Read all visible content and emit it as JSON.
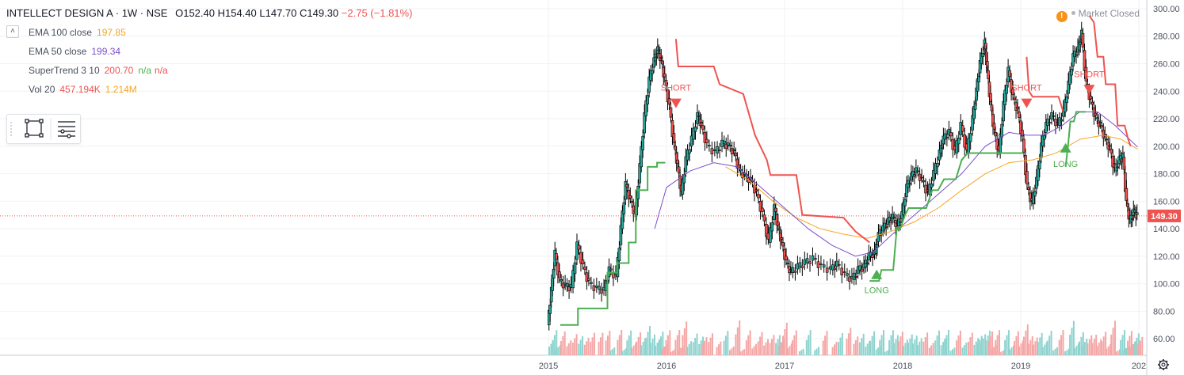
{
  "header": {
    "symbol": "INTELLECT DESIGN A · 1W · NSE",
    "open": "O152.40",
    "high": "H154.40",
    "low": "L147.70",
    "close": "C149.30",
    "change": "−2.75 (−1.81%)",
    "change_color": "#ef5350"
  },
  "legend": [
    {
      "name": "EMA 100 close",
      "values": [
        "197.85"
      ],
      "colors": [
        "#f5a623"
      ]
    },
    {
      "name": "EMA 50 close",
      "values": [
        "199.34"
      ],
      "colors": [
        "#7b4fc9"
      ]
    },
    {
      "name": "SuperTrend 3 10",
      "values": [
        "200.70",
        "n/a",
        "n/a"
      ],
      "colors": [
        "#ef5350",
        "#4caf50",
        "#ef5350"
      ]
    },
    {
      "name": "Vol 20",
      "values": [
        "457.194K",
        "1.214M"
      ],
      "colors": [
        "#ef5350",
        "#f5a623"
      ]
    }
  ],
  "status": {
    "icon": "warning-icon",
    "text": "Market Closed"
  },
  "toolbox": {
    "icons": [
      "rectangle-select-icon",
      "object-tree-icon"
    ]
  },
  "settings_icon": "gear-icon",
  "colors": {
    "up": "#26a69a",
    "down": "#ef5350",
    "candle_border": "#000000",
    "supertrend_up": "#4caf50",
    "supertrend_down": "#ef5350",
    "ema50": "#7b4fc9",
    "ema100": "#f5a623"
  },
  "chart_data": {
    "type": "candlestick",
    "x_ticks": [
      "2015",
      "2016",
      "2017",
      "2018",
      "2019",
      "202"
    ],
    "y_ticks": [
      60,
      80,
      100,
      120,
      140,
      160,
      180,
      200,
      220,
      240,
      260,
      280,
      300
    ],
    "ylim": [
      48,
      304
    ],
    "xlim": [
      2014.99,
      2020.0
    ],
    "last_price": "149.30",
    "close_series": [
      [
        2015.0,
        70
      ],
      [
        2015.03,
        95
      ],
      [
        2015.06,
        122
      ],
      [
        2015.1,
        102
      ],
      [
        2015.15,
        98
      ],
      [
        2015.2,
        97
      ],
      [
        2015.25,
        128
      ],
      [
        2015.3,
        112
      ],
      [
        2015.35,
        100
      ],
      [
        2015.42,
        96
      ],
      [
        2015.48,
        95
      ],
      [
        2015.52,
        110
      ],
      [
        2015.58,
        105
      ],
      [
        2015.62,
        140
      ],
      [
        2015.66,
        172
      ],
      [
        2015.7,
        160
      ],
      [
        2015.74,
        150
      ],
      [
        2015.78,
        185
      ],
      [
        2015.82,
        222
      ],
      [
        2015.86,
        248
      ],
      [
        2015.9,
        262
      ],
      [
        2015.93,
        270
      ],
      [
        2015.96,
        262
      ],
      [
        2015.99,
        248
      ],
      [
        2016.03,
        228
      ],
      [
        2016.07,
        200
      ],
      [
        2016.1,
        185
      ],
      [
        2016.13,
        165
      ],
      [
        2016.17,
        190
      ],
      [
        2016.22,
        205
      ],
      [
        2016.27,
        222
      ],
      [
        2016.3,
        215
      ],
      [
        2016.35,
        200
      ],
      [
        2016.42,
        195
      ],
      [
        2016.48,
        202
      ],
      [
        2016.53,
        200
      ],
      [
        2016.58,
        195
      ],
      [
        2016.62,
        182
      ],
      [
        2016.67,
        178
      ],
      [
        2016.72,
        175
      ],
      [
        2016.77,
        165
      ],
      [
        2016.82,
        150
      ],
      [
        2016.87,
        130
      ],
      [
        2016.92,
        155
      ],
      [
        2016.95,
        140
      ],
      [
        2016.98,
        130
      ],
      [
        2017.02,
        115
      ],
      [
        2017.06,
        108
      ],
      [
        2017.12,
        112
      ],
      [
        2017.18,
        115
      ],
      [
        2017.25,
        118
      ],
      [
        2017.32,
        112
      ],
      [
        2017.4,
        110
      ],
      [
        2017.45,
        114
      ],
      [
        2017.52,
        106
      ],
      [
        2017.58,
        103
      ],
      [
        2017.63,
        110
      ],
      [
        2017.68,
        112
      ],
      [
        2017.72,
        120
      ],
      [
        2017.77,
        122
      ],
      [
        2017.8,
        135
      ],
      [
        2017.84,
        140
      ],
      [
        2017.88,
        145
      ],
      [
        2017.92,
        148
      ],
      [
        2017.96,
        142
      ],
      [
        2018.0,
        150
      ],
      [
        2018.04,
        170
      ],
      [
        2018.08,
        178
      ],
      [
        2018.12,
        182
      ],
      [
        2018.17,
        175
      ],
      [
        2018.22,
        165
      ],
      [
        2018.27,
        180
      ],
      [
        2018.32,
        195
      ],
      [
        2018.35,
        205
      ],
      [
        2018.4,
        210
      ],
      [
        2018.45,
        195
      ],
      [
        2018.5,
        215
      ],
      [
        2018.55,
        195
      ],
      [
        2018.6,
        220
      ],
      [
        2018.63,
        240
      ],
      [
        2018.66,
        260
      ],
      [
        2018.7,
        275
      ],
      [
        2018.72,
        255
      ],
      [
        2018.75,
        230
      ],
      [
        2018.78,
        210
      ],
      [
        2018.82,
        195
      ],
      [
        2018.86,
        230
      ],
      [
        2018.9,
        255
      ],
      [
        2018.94,
        235
      ],
      [
        2018.98,
        225
      ],
      [
        2019.02,
        205
      ],
      [
        2019.06,
        170
      ],
      [
        2019.1,
        158
      ],
      [
        2019.14,
        175
      ],
      [
        2019.18,
        200
      ],
      [
        2019.22,
        215
      ],
      [
        2019.27,
        222
      ],
      [
        2019.32,
        215
      ],
      [
        2019.37,
        225
      ],
      [
        2019.41,
        245
      ],
      [
        2019.45,
        265
      ],
      [
        2019.49,
        270
      ],
      [
        2019.52,
        282
      ],
      [
        2019.56,
        245
      ],
      [
        2019.6,
        232
      ],
      [
        2019.64,
        220
      ],
      [
        2019.68,
        215
      ],
      [
        2019.72,
        205
      ],
      [
        2019.76,
        198
      ],
      [
        2019.8,
        182
      ],
      [
        2019.84,
        190
      ],
      [
        2019.87,
        192
      ],
      [
        2019.9,
        158
      ],
      [
        2019.93,
        145
      ],
      [
        2019.96,
        152
      ],
      [
        2019.99,
        149.3
      ]
    ],
    "supertrend": [
      {
        "trend": "up",
        "points": [
          [
            2015.1,
            70
          ],
          [
            2015.25,
            70
          ],
          [
            2015.25,
            82
          ],
          [
            2015.5,
            82
          ],
          [
            2015.5,
            108
          ],
          [
            2015.58,
            108
          ],
          [
            2015.58,
            115
          ],
          [
            2015.68,
            115
          ],
          [
            2015.68,
            130
          ],
          [
            2015.74,
            130
          ],
          [
            2015.74,
            168
          ],
          [
            2015.84,
            168
          ],
          [
            2015.84,
            185
          ],
          [
            2015.92,
            185
          ],
          [
            2015.92,
            188
          ],
          [
            2015.99,
            188
          ]
        ]
      },
      {
        "trend": "down",
        "points": [
          [
            2016.08,
            278
          ],
          [
            2016.1,
            258
          ],
          [
            2016.4,
            258
          ],
          [
            2016.45,
            245
          ],
          [
            2016.65,
            238
          ],
          [
            2016.75,
            208
          ],
          [
            2016.85,
            190
          ],
          [
            2016.88,
            179
          ],
          [
            2017.1,
            179
          ],
          [
            2017.15,
            150
          ],
          [
            2017.5,
            148
          ],
          [
            2017.6,
            138
          ],
          [
            2017.72,
            130
          ]
        ]
      },
      {
        "trend": "up",
        "points": [
          [
            2017.72,
            102
          ],
          [
            2017.8,
            102
          ],
          [
            2017.82,
            110
          ],
          [
            2017.92,
            110
          ],
          [
            2017.95,
            140
          ],
          [
            2017.98,
            140
          ],
          [
            2018.02,
            150
          ],
          [
            2018.05,
            155
          ],
          [
            2018.2,
            155
          ],
          [
            2018.25,
            168
          ],
          [
            2018.3,
            168
          ],
          [
            2018.35,
            176
          ],
          [
            2018.45,
            176
          ],
          [
            2018.5,
            190
          ],
          [
            2018.55,
            195
          ],
          [
            2018.95,
            195
          ],
          [
            2019.02,
            195
          ]
        ]
      },
      {
        "trend": "down",
        "points": [
          [
            2019.05,
            265
          ],
          [
            2019.07,
            240
          ],
          [
            2019.1,
            236
          ],
          [
            2019.32,
            236
          ],
          [
            2019.36,
            225
          ]
        ]
      },
      {
        "trend": "up",
        "points": [
          [
            2019.38,
            185
          ],
          [
            2019.4,
            200
          ],
          [
            2019.42,
            218
          ],
          [
            2019.45,
            218
          ],
          [
            2019.47,
            225
          ],
          [
            2019.55,
            225
          ]
        ]
      },
      {
        "trend": "down",
        "points": [
          [
            2019.58,
            295
          ],
          [
            2019.62,
            290
          ],
          [
            2019.65,
            265
          ],
          [
            2019.7,
            265
          ],
          [
            2019.72,
            245
          ],
          [
            2019.8,
            245
          ],
          [
            2019.82,
            215
          ],
          [
            2019.88,
            215
          ],
          [
            2019.91,
            205
          ],
          [
            2019.93,
            200
          ]
        ]
      }
    ],
    "ema50": [
      [
        2015.9,
        140
      ],
      [
        2016.0,
        170
      ],
      [
        2016.2,
        182
      ],
      [
        2016.4,
        188
      ],
      [
        2016.6,
        185
      ],
      [
        2016.8,
        170
      ],
      [
        2017.0,
        155
      ],
      [
        2017.2,
        140
      ],
      [
        2017.4,
        128
      ],
      [
        2017.6,
        120
      ],
      [
        2017.75,
        123
      ],
      [
        2017.9,
        135
      ],
      [
        2018.1,
        150
      ],
      [
        2018.3,
        165
      ],
      [
        2018.5,
        180
      ],
      [
        2018.7,
        200
      ],
      [
        2018.9,
        210
      ],
      [
        2019.05,
        208
      ],
      [
        2019.2,
        208
      ],
      [
        2019.35,
        215
      ],
      [
        2019.5,
        225
      ],
      [
        2019.65,
        225
      ],
      [
        2019.8,
        215
      ],
      [
        2019.99,
        199.34
      ]
    ],
    "ema100": [
      [
        2016.5,
        185
      ],
      [
        2016.7,
        175
      ],
      [
        2016.9,
        160
      ],
      [
        2017.1,
        148
      ],
      [
        2017.3,
        140
      ],
      [
        2017.5,
        136
      ],
      [
        2017.7,
        133
      ],
      [
        2017.9,
        138
      ],
      [
        2018.1,
        145
      ],
      [
        2018.3,
        155
      ],
      [
        2018.5,
        168
      ],
      [
        2018.7,
        180
      ],
      [
        2018.9,
        188
      ],
      [
        2019.1,
        190
      ],
      [
        2019.3,
        195
      ],
      [
        2019.5,
        205
      ],
      [
        2019.7,
        208
      ],
      [
        2019.85,
        205
      ],
      [
        2019.99,
        197.85
      ]
    ],
    "signals": [
      {
        "label": "SHORT",
        "type": "short",
        "x": 2016.08,
        "price": 230
      },
      {
        "label": "LONG",
        "type": "long",
        "x": 2017.78,
        "price": 108
      },
      {
        "label": "SHORT",
        "type": "short",
        "x": 2019.05,
        "price": 230
      },
      {
        "label": "LONG",
        "type": "long",
        "x": 2019.38,
        "price": 200
      },
      {
        "label": "SHORT",
        "type": "short",
        "x": 2019.58,
        "price": 240
      }
    ]
  }
}
